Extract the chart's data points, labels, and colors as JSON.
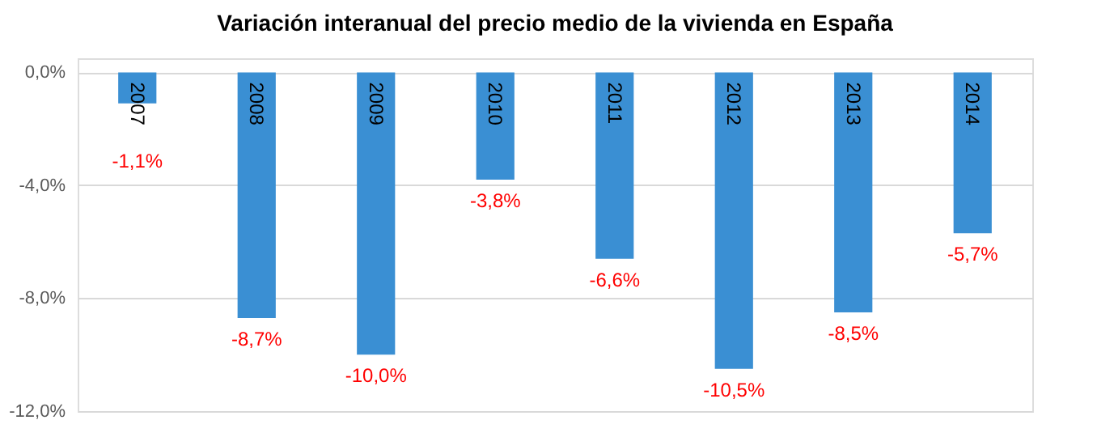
{
  "chart_data": {
    "type": "bar",
    "title": "Variación interanual del precio medio de la vivienda en España",
    "categories": [
      "2007",
      "2008",
      "2009",
      "2010",
      "2011",
      "2012",
      "2013",
      "2014"
    ],
    "values": [
      -1.1,
      -8.7,
      -10.0,
      -3.8,
      -6.6,
      -10.5,
      -8.5,
      -5.7
    ],
    "value_labels": [
      "-1,1%",
      "-8,7%",
      "-10,0%",
      "-3,8%",
      "-6,6%",
      "-10,5%",
      "-8,5%",
      "-5,7%"
    ],
    "color": "#3a8fd3",
    "ylim": [
      -12,
      0.5
    ],
    "yticks": [
      {
        "value": 0,
        "label": "0,0%"
      },
      {
        "value": -4,
        "label": "-4,0%"
      },
      {
        "value": -8,
        "label": "-8,0%"
      },
      {
        "value": -12,
        "label": "-12,0%"
      }
    ],
    "grid": "y"
  }
}
